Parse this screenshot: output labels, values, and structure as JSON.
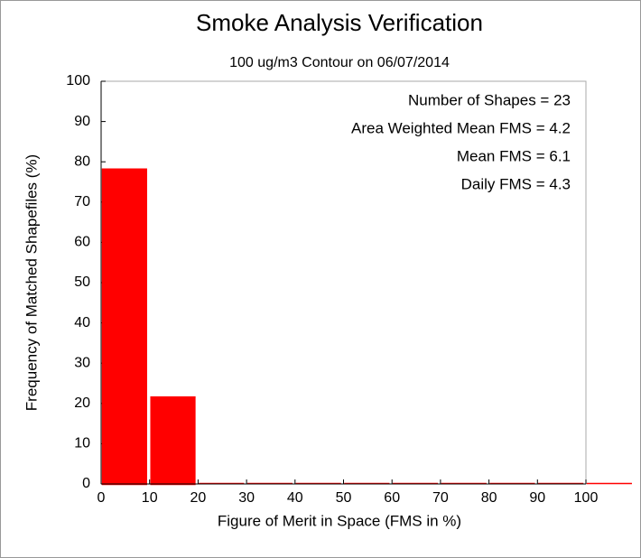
{
  "chart_data": {
    "type": "histogram",
    "title": "Smoke Analysis Verification",
    "subtitle": "100 ug/m3 Contour on 06/07/2014",
    "xlabel": "Figure of Merit in Space (FMS in %)",
    "ylabel": "Frequency of Matched Shapefiles (%)",
    "annotations": [
      "Number of Shapes = 23",
      "Area Weighted Mean FMS = 4.2",
      "Mean FMS = 6.1",
      "Daily FMS = 4.3"
    ],
    "bins": [
      0,
      10,
      20,
      30,
      40,
      50,
      60,
      70,
      80,
      90,
      100,
      110
    ],
    "counts": [
      78.3,
      21.7,
      0,
      0,
      0,
      0,
      0,
      0,
      0,
      0,
      0
    ],
    "color": "#ff0000",
    "xlim": [
      0,
      100
    ],
    "xticks": [
      0,
      10,
      20,
      30,
      40,
      50,
      60,
      70,
      80,
      90,
      100
    ],
    "ylim": [
      0,
      100
    ],
    "yticks": [
      0,
      10,
      20,
      30,
      40,
      50,
      60,
      70,
      80,
      90,
      100
    ]
  }
}
